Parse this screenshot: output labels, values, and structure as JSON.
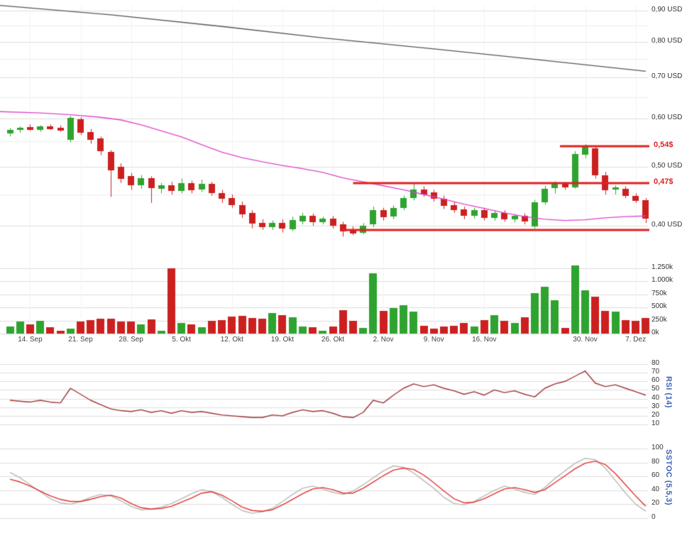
{
  "chart_data": [
    {
      "type": "candlestick",
      "panel": "price",
      "currency": "USD",
      "y_scale": "log",
      "y_ticks": [
        {
          "v": 0.9,
          "label": "0,90 USD"
        },
        {
          "v": 0.8,
          "label": "0,80 USD"
        },
        {
          "v": 0.7,
          "label": "0,70 USD"
        },
        {
          "v": 0.6,
          "label": "0,60 USD"
        },
        {
          "v": 0.5,
          "label": "0,50 USD"
        },
        {
          "v": 0.4,
          "label": "0,40 USD"
        }
      ],
      "y_ticks_minor": [
        0.85,
        0.75,
        0.65,
        0.55,
        0.45
      ],
      "x_ticks": [
        {
          "i": 2,
          "label": "14. Sep"
        },
        {
          "i": 7,
          "label": "21. Sep"
        },
        {
          "i": 12,
          "label": "28. Sep"
        },
        {
          "i": 17,
          "label": "5. Okt"
        },
        {
          "i": 22,
          "label": "12. Okt"
        },
        {
          "i": 27,
          "label": "19. Okt"
        },
        {
          "i": 32,
          "label": "26. Okt"
        },
        {
          "i": 37,
          "label": "2. Nov"
        },
        {
          "i": 42,
          "label": "9. Nov"
        },
        {
          "i": 47,
          "label": "16. Nov"
        },
        {
          "i": 57,
          "label": "30. Nov"
        },
        {
          "i": 62,
          "label": "7. Dez"
        }
      ],
      "week_lines": [
        2,
        7,
        12,
        17,
        22,
        27,
        32,
        37,
        42,
        47,
        52,
        57,
        62
      ],
      "candles": [
        [
          0.566,
          0.578,
          0.56,
          0.574
        ],
        [
          0.574,
          0.582,
          0.568,
          0.578
        ],
        [
          0.58,
          0.586,
          0.572,
          0.574
        ],
        [
          0.574,
          0.584,
          0.57,
          0.582
        ],
        [
          0.582,
          0.586,
          0.574,
          0.576
        ],
        [
          0.578,
          0.584,
          0.57,
          0.572
        ],
        [
          0.553,
          0.605,
          0.548,
          0.601
        ],
        [
          0.597,
          0.602,
          0.563,
          0.568
        ],
        [
          0.57,
          0.576,
          0.545,
          0.553
        ],
        [
          0.556,
          0.56,
          0.522,
          0.53
        ],
        [
          0.528,
          0.532,
          0.446,
          0.492
        ],
        [
          0.5,
          0.506,
          0.47,
          0.478
        ],
        [
          0.482,
          0.488,
          0.458,
          0.466
        ],
        [
          0.466,
          0.484,
          0.46,
          0.478
        ],
        [
          0.478,
          0.482,
          0.436,
          0.46
        ],
        [
          0.46,
          0.47,
          0.452,
          0.466
        ],
        [
          0.466,
          0.472,
          0.45,
          0.456
        ],
        [
          0.456,
          0.478,
          0.452,
          0.47
        ],
        [
          0.47,
          0.474,
          0.452,
          0.458
        ],
        [
          0.458,
          0.476,
          0.454,
          0.468
        ],
        [
          0.468,
          0.472,
          0.448,
          0.452
        ],
        [
          0.452,
          0.458,
          0.436,
          0.442
        ],
        [
          0.444,
          0.45,
          0.428,
          0.432
        ],
        [
          0.432,
          0.438,
          0.412,
          0.417
        ],
        [
          0.42,
          0.424,
          0.396,
          0.404
        ],
        [
          0.404,
          0.41,
          0.394,
          0.398
        ],
        [
          0.398,
          0.408,
          0.394,
          0.404
        ],
        [
          0.404,
          0.41,
          0.39,
          0.395
        ],
        [
          0.395,
          0.414,
          0.392,
          0.409
        ],
        [
          0.406,
          0.42,
          0.402,
          0.415
        ],
        [
          0.415,
          0.419,
          0.4,
          0.405
        ],
        [
          0.406,
          0.414,
          0.402,
          0.411
        ],
        [
          0.411,
          0.415,
          0.396,
          0.4
        ],
        [
          0.402,
          0.406,
          0.384,
          0.391
        ],
        [
          0.394,
          0.399,
          0.386,
          0.389
        ],
        [
          0.389,
          0.404,
          0.387,
          0.4
        ],
        [
          0.402,
          0.43,
          0.398,
          0.424
        ],
        [
          0.424,
          0.428,
          0.408,
          0.413
        ],
        [
          0.414,
          0.432,
          0.41,
          0.428
        ],
        [
          0.428,
          0.448,
          0.424,
          0.444
        ],
        [
          0.444,
          0.47,
          0.44,
          0.459
        ],
        [
          0.459,
          0.464,
          0.446,
          0.451
        ],
        [
          0.454,
          0.458,
          0.438,
          0.443
        ],
        [
          0.443,
          0.448,
          0.426,
          0.431
        ],
        [
          0.432,
          0.437,
          0.42,
          0.424
        ],
        [
          0.425,
          0.43,
          0.41,
          0.415
        ],
        [
          0.415,
          0.428,
          0.411,
          0.424
        ],
        [
          0.424,
          0.428,
          0.408,
          0.412
        ],
        [
          0.412,
          0.424,
          0.408,
          0.42
        ],
        [
          0.42,
          0.424,
          0.406,
          0.41
        ],
        [
          0.41,
          0.418,
          0.405,
          0.415
        ],
        [
          0.415,
          0.419,
          0.402,
          0.406
        ],
        [
          0.399,
          0.441,
          0.396,
          0.437
        ],
        [
          0.437,
          0.465,
          0.433,
          0.46
        ],
        [
          0.46,
          0.473,
          0.452,
          0.468
        ],
        [
          0.468,
          0.472,
          0.458,
          0.462
        ],
        [
          0.462,
          0.53,
          0.46,
          0.524
        ],
        [
          0.524,
          0.544,
          0.516,
          0.539
        ],
        [
          0.536,
          0.54,
          0.478,
          0.484
        ],
        [
          0.484,
          0.49,
          0.45,
          0.458
        ],
        [
          0.458,
          0.466,
          0.45,
          0.462
        ],
        [
          0.46,
          0.464,
          0.444,
          0.448
        ],
        [
          0.448,
          0.452,
          0.436,
          0.44
        ],
        [
          0.44,
          0.444,
          0.404,
          0.41
        ]
      ],
      "overlays": [
        {
          "name": "upper-reference-line",
          "color": "#555555",
          "width": 1.3,
          "points": [
            {
              "i": -1,
              "v": 0.918
            },
            {
              "i": 10,
              "v": 0.886
            },
            {
              "i": 21,
              "v": 0.848
            },
            {
              "i": 31,
              "v": 0.812
            },
            {
              "i": 42,
              "v": 0.779
            },
            {
              "i": 52,
              "v": 0.749
            },
            {
              "i": 63,
              "v": 0.716
            }
          ]
        },
        {
          "name": "moving-average-line",
          "color": "#dd44cc",
          "width": 1.3,
          "points": [
            {
              "i": -1,
              "v": 0.615
            },
            {
              "i": 3,
              "v": 0.612
            },
            {
              "i": 6,
              "v": 0.608
            },
            {
              "i": 9,
              "v": 0.602
            },
            {
              "i": 11,
              "v": 0.596
            },
            {
              "i": 13,
              "v": 0.585
            },
            {
              "i": 15,
              "v": 0.572
            },
            {
              "i": 17,
              "v": 0.559
            },
            {
              "i": 19,
              "v": 0.543
            },
            {
              "i": 21,
              "v": 0.528
            },
            {
              "i": 23,
              "v": 0.517
            },
            {
              "i": 25,
              "v": 0.509
            },
            {
              "i": 27,
              "v": 0.502
            },
            {
              "i": 29,
              "v": 0.496
            },
            {
              "i": 31,
              "v": 0.489
            },
            {
              "i": 33,
              "v": 0.479
            },
            {
              "i": 35,
              "v": 0.472
            },
            {
              "i": 37,
              "v": 0.465
            },
            {
              "i": 39,
              "v": 0.458
            },
            {
              "i": 41,
              "v": 0.45
            },
            {
              "i": 43,
              "v": 0.442
            },
            {
              "i": 45,
              "v": 0.434
            },
            {
              "i": 47,
              "v": 0.427
            },
            {
              "i": 49,
              "v": 0.42
            },
            {
              "i": 51,
              "v": 0.414
            },
            {
              "i": 53,
              "v": 0.41
            },
            {
              "i": 55,
              "v": 0.408
            },
            {
              "i": 57,
              "v": 0.409
            },
            {
              "i": 59,
              "v": 0.412
            },
            {
              "i": 61,
              "v": 0.414
            },
            {
              "i": 63,
              "v": 0.415
            }
          ]
        }
      ],
      "levels": [
        {
          "v": 0.54,
          "label": "0,54$",
          "from_i": 54.5
        },
        {
          "v": 0.47,
          "label": "0,47$",
          "from_i": 34.0
        },
        {
          "v": 0.394,
          "label": "",
          "from_i": 32.8
        }
      ]
    },
    {
      "type": "bar",
      "panel": "volume",
      "y_ticks": [
        {
          "v": 1250,
          "label": "1.250k"
        },
        {
          "v": 1000,
          "label": "1.000k"
        },
        {
          "v": 750,
          "label": "750k"
        },
        {
          "v": 500,
          "label": "500k"
        },
        {
          "v": 250,
          "label": "250k"
        },
        {
          "v": 0,
          "label": "0k"
        }
      ],
      "values_k": [
        140,
        230,
        180,
        240,
        120,
        50,
        100,
        230,
        260,
        290,
        280,
        230,
        230,
        180,
        270,
        60,
        1250,
        210,
        170,
        120,
        240,
        260,
        330,
        340,
        300,
        280,
        390,
        360,
        310,
        130,
        120,
        60,
        130,
        450,
        240,
        110,
        1150,
        430,
        490,
        540,
        420,
        150,
        100,
        130,
        150,
        210,
        130,
        260,
        350,
        240,
        210,
        310,
        780,
        890,
        640,
        110,
        1310,
        830,
        700,
        430,
        420,
        260,
        240,
        300
      ]
    },
    {
      "type": "line",
      "panel": "rsi",
      "label": "RSI (14)",
      "color": "#a03333",
      "y_range": [
        10,
        80
      ],
      "y_ticks": [
        80,
        70,
        60,
        50,
        40,
        30,
        20,
        10
      ],
      "values": [
        38,
        37,
        36,
        38,
        36,
        35,
        52,
        45,
        38,
        33,
        28,
        26,
        25,
        27,
        24,
        26,
        23,
        26,
        24,
        25,
        23,
        21,
        20,
        19,
        18,
        18,
        21,
        20,
        24,
        27,
        25,
        26,
        23,
        19,
        18,
        24,
        38,
        35,
        44,
        52,
        57,
        54,
        56,
        52,
        49,
        45,
        48,
        44,
        50,
        47,
        49,
        45,
        42,
        52,
        57,
        60,
        66,
        72,
        58,
        54,
        56,
        52,
        48,
        44
      ]
    },
    {
      "type": "line",
      "panel": "sstoc",
      "label": "SSTOC (5,5,3)",
      "y_range": [
        0,
        100
      ],
      "y_ticks": [
        100,
        80,
        60,
        40,
        20,
        0
      ],
      "series": [
        {
          "name": "slow-line",
          "color": "#b8b8b8",
          "values": [
            66,
            58,
            48,
            38,
            28,
            22,
            20,
            24,
            30,
            34,
            32,
            25,
            17,
            12,
            13,
            16,
            21,
            28,
            35,
            41,
            38,
            30,
            20,
            11,
            7,
            9,
            14,
            24,
            34,
            43,
            46,
            42,
            37,
            34,
            39,
            48,
            58,
            68,
            75,
            73,
            65,
            54,
            43,
            30,
            21,
            19,
            24,
            32,
            40,
            46,
            42,
            37,
            34,
            44,
            57,
            68,
            79,
            86,
            84,
            72,
            54,
            36,
            20,
            10
          ]
        },
        {
          "name": "fast-line",
          "color": "#e03030",
          "values": [
            56,
            52,
            46,
            39,
            32,
            27,
            24,
            24,
            27,
            31,
            33,
            29,
            21,
            15,
            13,
            14,
            17,
            23,
            29,
            36,
            38,
            33,
            25,
            16,
            11,
            10,
            12,
            19,
            27,
            35,
            42,
            44,
            41,
            36,
            36,
            43,
            52,
            61,
            69,
            72,
            70,
            62,
            51,
            39,
            28,
            22,
            23,
            28,
            35,
            42,
            44,
            41,
            37,
            41,
            51,
            61,
            71,
            79,
            82,
            77,
            64,
            48,
            32,
            17
          ]
        }
      ]
    }
  ],
  "colors": {
    "up": "#2fa32f",
    "down": "#cc2020",
    "grid": "#dcdcdc",
    "grid_minor": "#ececec",
    "grid_vertical": "#f2f2f2",
    "level": "#e02020",
    "axis_text": "#333333",
    "panel_label": "#3b62b5",
    "background": "#ffffff"
  }
}
